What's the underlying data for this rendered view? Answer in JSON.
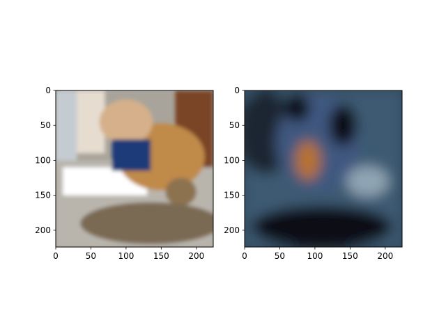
{
  "chart_data": [
    {
      "type": "image",
      "title": "",
      "xlabel": "",
      "ylabel": "",
      "xlim": [
        0,
        224
      ],
      "ylim": [
        224,
        0
      ],
      "xticks": [
        0,
        50,
        100,
        150,
        200
      ],
      "yticks": [
        0,
        50,
        100,
        150,
        200
      ],
      "xtick_labels": [
        "0",
        "50",
        "100",
        "150",
        "200"
      ],
      "ytick_labels": [
        "0",
        "50",
        "100",
        "150",
        "200"
      ],
      "grid": false,
      "image_description": "photo of an English bulldog with blue harness sitting behind a tabby cat lying on a floor",
      "regions": [
        {
          "name": "floor",
          "x": [
            0,
            224
          ],
          "y": [
            100,
            224
          ],
          "color": "#b9b5ad"
        },
        {
          "name": "window-frame",
          "x": [
            0,
            30
          ],
          "y": [
            0,
            100
          ],
          "color": "#c4ccd2"
        },
        {
          "name": "wall",
          "x": [
            30,
            70
          ],
          "y": [
            0,
            90
          ],
          "color": "#e6ddd0"
        },
        {
          "name": "cabinet",
          "x": [
            170,
            224
          ],
          "y": [
            0,
            110
          ],
          "color": "#7a4528"
        },
        {
          "name": "sunlight",
          "x": [
            10,
            130
          ],
          "y": [
            110,
            150
          ],
          "color": "#ffffff"
        },
        {
          "name": "dog-body",
          "cx": 150,
          "cy": 95,
          "rx": 62,
          "ry": 48,
          "color": "#c08a4a"
        },
        {
          "name": "dog-head",
          "cx": 100,
          "cy": 45,
          "rx": 38,
          "ry": 32,
          "color": "#d6b08a"
        },
        {
          "name": "dog-harness",
          "x": [
            80,
            135
          ],
          "y": [
            70,
            115
          ],
          "color": "#1c3a78"
        },
        {
          "name": "cat-head",
          "cx": 178,
          "cy": 145,
          "rx": 22,
          "ry": 20,
          "color": "#8d7250"
        },
        {
          "name": "cat-body",
          "cx": 135,
          "cy": 190,
          "rx": 100,
          "ry": 30,
          "color": "#7a6a52"
        }
      ]
    },
    {
      "type": "image",
      "title": "",
      "xlabel": "",
      "ylabel": "",
      "xlim": [
        0,
        224
      ],
      "ylim": [
        224,
        0
      ],
      "xticks": [
        0,
        50,
        100,
        150,
        200
      ],
      "yticks": [
        0,
        50,
        100,
        150,
        200
      ],
      "xtick_labels": [
        "0",
        "50",
        "100",
        "150",
        "200"
      ],
      "ytick_labels": [
        "0",
        "50",
        "100",
        "150",
        "200"
      ],
      "grid": false,
      "image_description": "blurry reconstruction of the same photo in dark blue, black and orange tones",
      "regions": [
        {
          "name": "background",
          "x": [
            0,
            224
          ],
          "y": [
            0,
            224
          ],
          "color": "#3c5a72"
        },
        {
          "name": "dark-upper-left",
          "cx": 30,
          "cy": 60,
          "rx": 40,
          "ry": 60,
          "color": "#1a2530"
        },
        {
          "name": "dog-shape",
          "cx": 105,
          "cy": 75,
          "rx": 60,
          "ry": 70,
          "color": "#405880"
        },
        {
          "name": "dark-ear-left",
          "cx": 75,
          "cy": 25,
          "rx": 18,
          "ry": 20,
          "color": "#0a0d12"
        },
        {
          "name": "dark-ear-right",
          "cx": 140,
          "cy": 50,
          "rx": 20,
          "ry": 30,
          "color": "#0a0d12"
        },
        {
          "name": "orange-patch",
          "cx": 90,
          "cy": 100,
          "rx": 18,
          "ry": 28,
          "color": "#b8722e"
        },
        {
          "name": "light-patch",
          "cx": 175,
          "cy": 130,
          "rx": 30,
          "ry": 22,
          "color": "#8fa4b4"
        },
        {
          "name": "dark-lower",
          "cx": 110,
          "cy": 195,
          "rx": 100,
          "ry": 30,
          "color": "#0d1117"
        }
      ]
    }
  ]
}
